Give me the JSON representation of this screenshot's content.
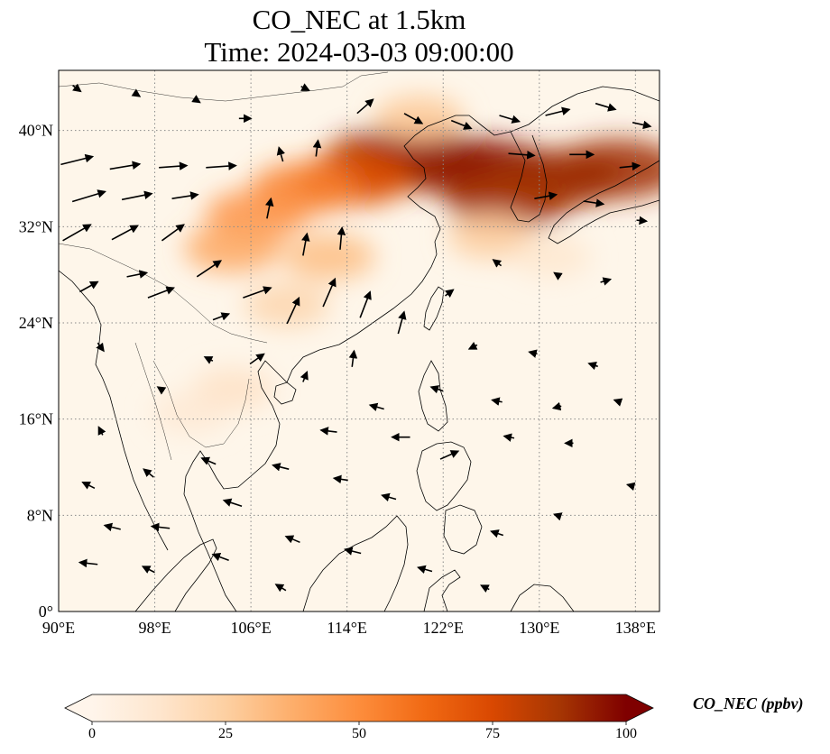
{
  "title": {
    "line1": "CO_NEC at 1.5km",
    "line2": "Time: 2024-03-03 09:00:00"
  },
  "map": {
    "lon_range": [
      90,
      140
    ],
    "lat_range": [
      0,
      45
    ],
    "lon_ticks": [
      {
        "value": 90,
        "label": "90°E"
      },
      {
        "value": 98,
        "label": "98°E"
      },
      {
        "value": 106,
        "label": "106°E"
      },
      {
        "value": 114,
        "label": "114°E"
      },
      {
        "value": 122,
        "label": "122°E"
      },
      {
        "value": 130,
        "label": "130°E"
      },
      {
        "value": 138,
        "label": "138°E"
      }
    ],
    "lat_ticks": [
      {
        "value": 0,
        "label": "0°"
      },
      {
        "value": 8,
        "label": "8°N"
      },
      {
        "value": 16,
        "label": "16°N"
      },
      {
        "value": 24,
        "label": "24°N"
      },
      {
        "value": 32,
        "label": "32°N"
      },
      {
        "value": 40,
        "label": "40°N"
      }
    ],
    "gridlines": true,
    "colors": {
      "background": "#fef6ea",
      "grid": "#8a8a8a",
      "coast": "#000000",
      "arrow": "#000000"
    },
    "plume": [
      {
        "lon": 125.5,
        "lat": 36.8,
        "value": 98
      },
      {
        "lon": 121.0,
        "lat": 37.4,
        "value": 95
      },
      {
        "lon": 117.5,
        "lat": 37.6,
        "value": 92
      },
      {
        "lon": 131.5,
        "lat": 36.0,
        "value": 92
      },
      {
        "lon": 136.5,
        "lat": 36.8,
        "value": 90
      },
      {
        "lon": 127.5,
        "lat": 34.2,
        "value": 88
      },
      {
        "lon": 114.5,
        "lat": 36.0,
        "value": 72
      },
      {
        "lon": 110.5,
        "lat": 35.2,
        "value": 55
      },
      {
        "lon": 106.5,
        "lat": 33.0,
        "value": 48
      },
      {
        "lon": 104.5,
        "lat": 30.2,
        "value": 40
      },
      {
        "lon": 112.5,
        "lat": 29.5,
        "value": 32
      },
      {
        "lon": 109.0,
        "lat": 25.5,
        "value": 22
      },
      {
        "lon": 126.0,
        "lat": 31.2,
        "value": 26
      },
      {
        "lon": 131.0,
        "lat": 29.5,
        "value": 12
      },
      {
        "lon": 120.0,
        "lat": 41.0,
        "value": 28
      },
      {
        "lon": 104.5,
        "lat": 18.5,
        "value": 15
      },
      {
        "lon": 101.0,
        "lat": 16.5,
        "value": 10
      }
    ],
    "wind": [
      {
        "lon": 91.5,
        "lat": 37.5,
        "u": 3.2,
        "v": 0.8
      },
      {
        "lon": 95.5,
        "lat": 37.0,
        "u": 3.0,
        "v": 0.5
      },
      {
        "lon": 99.5,
        "lat": 37.0,
        "u": 2.8,
        "v": 0.2
      },
      {
        "lon": 103.5,
        "lat": 37.0,
        "u": 3.0,
        "v": 0.2
      },
      {
        "lon": 92.5,
        "lat": 34.5,
        "u": 3.3,
        "v": 1.0
      },
      {
        "lon": 96.5,
        "lat": 34.5,
        "u": 3.0,
        "v": 0.6
      },
      {
        "lon": 100.5,
        "lat": 34.5,
        "u": 2.6,
        "v": 0.4
      },
      {
        "lon": 91.5,
        "lat": 31.5,
        "u": 2.8,
        "v": 1.6
      },
      {
        "lon": 95.5,
        "lat": 31.5,
        "u": 2.6,
        "v": 1.4
      },
      {
        "lon": 99.5,
        "lat": 31.5,
        "u": 2.2,
        "v": 1.6
      },
      {
        "lon": 102.5,
        "lat": 28.5,
        "u": 2.4,
        "v": 1.6
      },
      {
        "lon": 98.5,
        "lat": 26.5,
        "u": 2.6,
        "v": 1.0
      },
      {
        "lon": 106.5,
        "lat": 26.5,
        "u": 2.8,
        "v": 1.0
      },
      {
        "lon": 109.5,
        "lat": 25.0,
        "u": 1.2,
        "v": 2.6
      },
      {
        "lon": 112.5,
        "lat": 26.5,
        "u": 1.2,
        "v": 2.8
      },
      {
        "lon": 115.5,
        "lat": 25.5,
        "u": 1.0,
        "v": 2.6
      },
      {
        "lon": 118.5,
        "lat": 24.0,
        "u": 0.6,
        "v": 2.2
      },
      {
        "lon": 110.5,
        "lat": 30.5,
        "u": 0.4,
        "v": 2.2
      },
      {
        "lon": 113.5,
        "lat": 31.0,
        "u": 0.2,
        "v": 2.2
      },
      {
        "lon": 107.5,
        "lat": 33.5,
        "u": 0.4,
        "v": 2.0
      },
      {
        "lon": 111.5,
        "lat": 38.5,
        "u": 0.2,
        "v": 1.6
      },
      {
        "lon": 108.5,
        "lat": 38.0,
        "u": -0.4,
        "v": 1.4
      },
      {
        "lon": 115.5,
        "lat": 42.0,
        "u": 1.6,
        "v": 1.4
      },
      {
        "lon": 119.5,
        "lat": 41.0,
        "u": 1.8,
        "v": -1.0
      },
      {
        "lon": 123.5,
        "lat": 40.5,
        "u": 2.0,
        "v": -0.8
      },
      {
        "lon": 127.5,
        "lat": 41.0,
        "u": 2.0,
        "v": -0.6
      },
      {
        "lon": 131.5,
        "lat": 41.5,
        "u": 2.4,
        "v": 0.6
      },
      {
        "lon": 135.5,
        "lat": 42.0,
        "u": 2.0,
        "v": -0.6
      },
      {
        "lon": 138.5,
        "lat": 40.5,
        "u": 1.8,
        "v": -0.4
      },
      {
        "lon": 128.5,
        "lat": 38.0,
        "u": 2.6,
        "v": -0.2
      },
      {
        "lon": 133.5,
        "lat": 38.0,
        "u": 2.4,
        "v": 0.0
      },
      {
        "lon": 137.5,
        "lat": 37.0,
        "u": 2.0,
        "v": 0.2
      },
      {
        "lon": 130.5,
        "lat": 34.5,
        "u": 2.2,
        "v": 0.4
      },
      {
        "lon": 134.5,
        "lat": 34.0,
        "u": 2.0,
        "v": -0.3
      },
      {
        "lon": 138.5,
        "lat": 32.5,
        "u": 1.0,
        "v": -0.1
      },
      {
        "lon": 126.5,
        "lat": 29.0,
        "u": -0.8,
        "v": 0.6
      },
      {
        "lon": 131.5,
        "lat": 28.0,
        "u": -0.6,
        "v": 0.4
      },
      {
        "lon": 135.5,
        "lat": 27.5,
        "u": 1.0,
        "v": 0.3
      },
      {
        "lon": 122.5,
        "lat": 26.5,
        "u": 0.8,
        "v": 0.6
      },
      {
        "lon": 124.5,
        "lat": 22.0,
        "u": -0.8,
        "v": -0.4
      },
      {
        "lon": 129.5,
        "lat": 21.5,
        "u": -0.8,
        "v": 0.2
      },
      {
        "lon": 134.5,
        "lat": 20.5,
        "u": -0.9,
        "v": 0.3
      },
      {
        "lon": 121.5,
        "lat": 18.5,
        "u": -1.2,
        "v": 0.4
      },
      {
        "lon": 126.5,
        "lat": 17.5,
        "u": -1.0,
        "v": 0.2
      },
      {
        "lon": 131.5,
        "lat": 17.0,
        "u": -0.8,
        "v": -0.2
      },
      {
        "lon": 136.5,
        "lat": 17.5,
        "u": -0.6,
        "v": 0.2
      },
      {
        "lon": 116.5,
        "lat": 17.0,
        "u": -1.4,
        "v": 0.4
      },
      {
        "lon": 112.5,
        "lat": 15.0,
        "u": -1.6,
        "v": 0.2
      },
      {
        "lon": 118.5,
        "lat": 14.5,
        "u": -1.8,
        "v": 0.0
      },
      {
        "lon": 122.5,
        "lat": 13.0,
        "u": 1.8,
        "v": 0.8
      },
      {
        "lon": 127.5,
        "lat": 14.5,
        "u": -1.0,
        "v": 0.2
      },
      {
        "lon": 132.5,
        "lat": 14.0,
        "u": -0.8,
        "v": 0.0
      },
      {
        "lon": 108.5,
        "lat": 12.0,
        "u": -1.6,
        "v": 0.4
      },
      {
        "lon": 113.5,
        "lat": 11.0,
        "u": -1.4,
        "v": 0.2
      },
      {
        "lon": 117.5,
        "lat": 9.5,
        "u": -1.4,
        "v": 0.4
      },
      {
        "lon": 104.5,
        "lat": 9.0,
        "u": -1.8,
        "v": 0.6
      },
      {
        "lon": 98.5,
        "lat": 7.0,
        "u": -1.8,
        "v": 0.2
      },
      {
        "lon": 94.5,
        "lat": 7.0,
        "u": -1.6,
        "v": 0.4
      },
      {
        "lon": 92.5,
        "lat": 10.5,
        "u": -1.2,
        "v": 0.6
      },
      {
        "lon": 97.5,
        "lat": 11.5,
        "u": -1.0,
        "v": 0.8
      },
      {
        "lon": 102.5,
        "lat": 12.5,
        "u": -1.4,
        "v": 0.6
      },
      {
        "lon": 109.5,
        "lat": 6.0,
        "u": -1.4,
        "v": 0.6
      },
      {
        "lon": 114.5,
        "lat": 5.0,
        "u": -1.6,
        "v": 0.4
      },
      {
        "lon": 103.5,
        "lat": 4.5,
        "u": -1.6,
        "v": 0.6
      },
      {
        "lon": 97.5,
        "lat": 3.5,
        "u": -1.2,
        "v": 0.6
      },
      {
        "lon": 92.5,
        "lat": 4.0,
        "u": -1.8,
        "v": 0.2
      },
      {
        "lon": 108.5,
        "lat": 2.0,
        "u": -1.0,
        "v": 0.6
      },
      {
        "lon": 120.5,
        "lat": 3.5,
        "u": -1.4,
        "v": 0.4
      },
      {
        "lon": 126.5,
        "lat": 6.5,
        "u": -1.2,
        "v": 0.4
      },
      {
        "lon": 131.5,
        "lat": 8.0,
        "u": -0.6,
        "v": 0.2
      },
      {
        "lon": 137.5,
        "lat": 10.5,
        "u": -0.4,
        "v": 0.1
      },
      {
        "lon": 125.5,
        "lat": 2.0,
        "u": -0.8,
        "v": 0.4
      },
      {
        "lon": 93.5,
        "lat": 15.0,
        "u": -0.4,
        "v": 0.8
      },
      {
        "lon": 98.5,
        "lat": 18.5,
        "u": -0.6,
        "v": 0.4
      },
      {
        "lon": 102.5,
        "lat": 21.0,
        "u": -0.8,
        "v": 0.4
      },
      {
        "lon": 93.5,
        "lat": 22.0,
        "u": 0.6,
        "v": -0.8
      },
      {
        "lon": 106.5,
        "lat": 21.0,
        "u": 1.4,
        "v": 1.0
      },
      {
        "lon": 110.5,
        "lat": 19.5,
        "u": 0.4,
        "v": 1.0
      },
      {
        "lon": 114.5,
        "lat": 21.0,
        "u": 0.2,
        "v": 1.6
      },
      {
        "lon": 103.5,
        "lat": 24.5,
        "u": 1.6,
        "v": 0.6
      },
      {
        "lon": 92.5,
        "lat": 27.0,
        "u": 1.8,
        "v": 1.0
      },
      {
        "lon": 96.5,
        "lat": 28.0,
        "u": 2.0,
        "v": 0.4
      },
      {
        "lon": 91.5,
        "lat": 43.5,
        "u": 0.8,
        "v": -0.6
      },
      {
        "lon": 96.5,
        "lat": 43.0,
        "u": 0.6,
        "v": -0.4
      },
      {
        "lon": 101.5,
        "lat": 42.5,
        "u": 0.6,
        "v": -0.4
      },
      {
        "lon": 105.5,
        "lat": 41.0,
        "u": 1.2,
        "v": 0.0
      },
      {
        "lon": 110.5,
        "lat": 43.5,
        "u": 0.8,
        "v": -0.4
      }
    ]
  },
  "colorbar": {
    "label": "CO_NEC (ppbv)",
    "range": [
      0,
      100
    ],
    "ticks": [
      {
        "value": 0,
        "label": "0"
      },
      {
        "value": 25,
        "label": "25"
      },
      {
        "value": 50,
        "label": "50"
      },
      {
        "value": 75,
        "label": "75"
      },
      {
        "value": 100,
        "label": "100"
      }
    ],
    "colors": [
      "#fff5eb",
      "#fee6ce",
      "#fdd0a2",
      "#fdae6b",
      "#fd8d3c",
      "#f16913",
      "#d94801",
      "#a63603",
      "#7f0000"
    ]
  }
}
